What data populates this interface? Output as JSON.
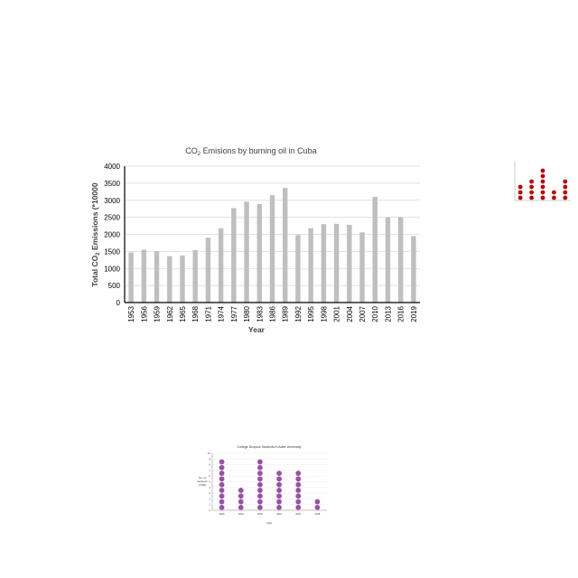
{
  "chart_data": [
    {
      "type": "bar",
      "title": "CO2 Emisions by burning oil in Cuba",
      "title_main": "CO",
      "title_sub": "2",
      "title_rest": " Emisions by burning oil in Cuba",
      "xlabel": "Year",
      "ylabel": "Total CO2 Emissions (*10000",
      "ylabel_main": "Total CO",
      "ylabel_sub": "2",
      "ylabel_rest": " Emissions (*10000",
      "ylim": [
        0,
        4000
      ],
      "yticks": [
        0,
        500,
        1000,
        1500,
        2000,
        2500,
        3000,
        3500,
        4000
      ],
      "grid": true,
      "bar_color": "#bfbfbf",
      "categories": [
        "1953",
        "1956",
        "1959",
        "1962",
        "1965",
        "1968",
        "1971",
        "1974",
        "1977",
        "1980",
        "1983",
        "1986",
        "1989",
        "1992",
        "1995",
        "1998",
        "2001",
        "2004",
        "2007",
        "2010",
        "2013",
        "2016",
        "2019"
      ],
      "values": [
        1470,
        1550,
        1510,
        1360,
        1380,
        1540,
        1900,
        2180,
        2770,
        2960,
        2890,
        3150,
        3360,
        1980,
        2180,
        2300,
        2310,
        2280,
        2060,
        3100,
        2500,
        2510,
        1950
      ]
    },
    {
      "type": "scatter",
      "marker_color": "#c00000",
      "title": "",
      "categories": [
        "",
        "",
        "",
        "",
        ""
      ],
      "values": [
        3,
        4,
        6,
        2,
        4
      ]
    },
    {
      "type": "scatter",
      "title": "College Dropout Students in Adler University",
      "xlabel": "Year",
      "ylabel": "No. of students (*100)",
      "ylabel_lines": [
        "No. of",
        "students",
        "(*100)"
      ],
      "ylim": [
        0,
        10
      ],
      "yticks": [
        0,
        1,
        2,
        3,
        4,
        5,
        6,
        7,
        8,
        9,
        10
      ],
      "marker_color": "#9b4fa8",
      "categories": [
        "2000",
        "2004",
        "2010",
        "2012",
        "2016",
        "2018"
      ],
      "values": [
        9,
        4,
        9,
        7,
        7,
        2
      ]
    }
  ]
}
